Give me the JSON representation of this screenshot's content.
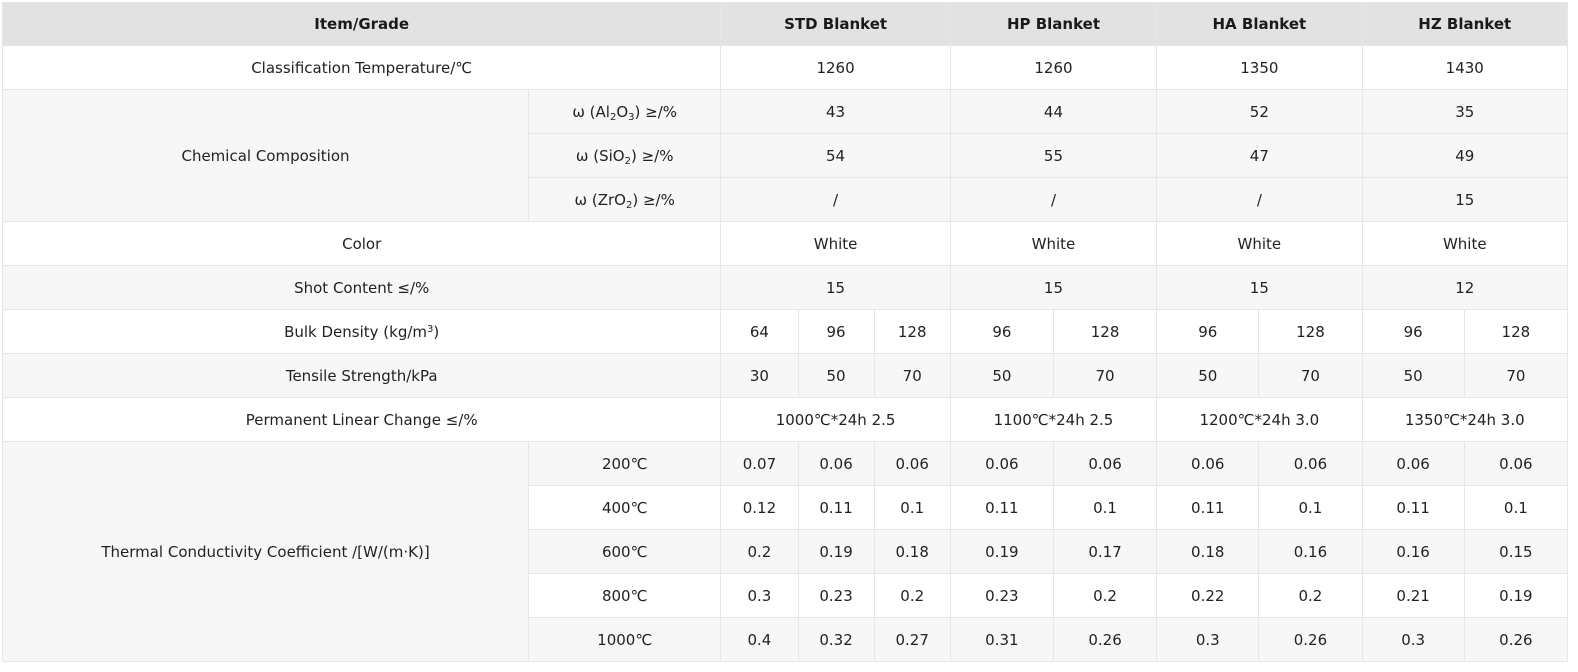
{
  "headers": {
    "item_grade": "Item/Grade",
    "std": "STD Blanket",
    "hp": "HP Blanket",
    "ha": "HA Blanket",
    "hz": "HZ Blanket"
  },
  "classification": {
    "label": "Classification Temperature/℃",
    "values": [
      "1260",
      "1260",
      "1350",
      "1430"
    ]
  },
  "chemical": {
    "label": "Chemical Composition",
    "al2o3": {
      "pre": "ω (Al",
      "s1": "2",
      "mid": "O",
      "s2": "3",
      "post": ") ≥/%",
      "values": [
        "43",
        "44",
        "52",
        "35"
      ]
    },
    "sio2": {
      "pre": "ω (SiO",
      "s1": "2",
      "post": ") ≥/%",
      "values": [
        "54",
        "55",
        "47",
        "49"
      ]
    },
    "zro2": {
      "pre": "ω (ZrO",
      "s1": "2",
      "post": ") ≥/%",
      "values": [
        "/",
        "/",
        "/",
        "15"
      ]
    }
  },
  "color": {
    "label": "Color",
    "values": [
      "White",
      "White",
      "White",
      "White"
    ]
  },
  "shot": {
    "label": "Shot Content ≤/%",
    "values": [
      "15",
      "15",
      "15",
      "12"
    ]
  },
  "bulk": {
    "label_pre": "Bulk Density (kg/m",
    "label_sup": "3",
    "label_post": ")",
    "values": [
      "64",
      "96",
      "128",
      "96",
      "128",
      "96",
      "128",
      "96",
      "128"
    ]
  },
  "tensile": {
    "label": "Tensile Strength/kPa",
    "values": [
      "30",
      "50",
      "70",
      "50",
      "70",
      "50",
      "70",
      "50",
      "70"
    ]
  },
  "plc": {
    "label": "Permanent Linear Change ≤/%",
    "values": [
      "1000℃*24h 2.5",
      "1100℃*24h 2.5",
      "1200℃*24h 3.0",
      "1350℃*24h 3.0"
    ]
  },
  "thermal": {
    "label": "Thermal Conductivity Coefficient /[W/(m·K)]",
    "rows": [
      {
        "temp": "200℃",
        "values": [
          "0.07",
          "0.06",
          "0.06",
          "0.06",
          "0.06",
          "0.06",
          "0.06",
          "0.06",
          "0.06"
        ]
      },
      {
        "temp": "400℃",
        "values": [
          "0.12",
          "0.11",
          "0.1",
          "0.11",
          "0.1",
          "0.11",
          "0.1",
          "0.11",
          "0.1"
        ]
      },
      {
        "temp": "600℃",
        "values": [
          "0.2",
          "0.19",
          "0.18",
          "0.19",
          "0.17",
          "0.18",
          "0.16",
          "0.16",
          "0.15"
        ]
      },
      {
        "temp": "800℃",
        "values": [
          "0.3",
          "0.23",
          "0.2",
          "0.23",
          "0.2",
          "0.22",
          "0.2",
          "0.21",
          "0.19"
        ]
      },
      {
        "temp": "1000℃",
        "values": [
          "0.4",
          "0.32",
          "0.27",
          "0.31",
          "0.26",
          "0.3",
          "0.26",
          "0.3",
          "0.26"
        ]
      }
    ]
  }
}
